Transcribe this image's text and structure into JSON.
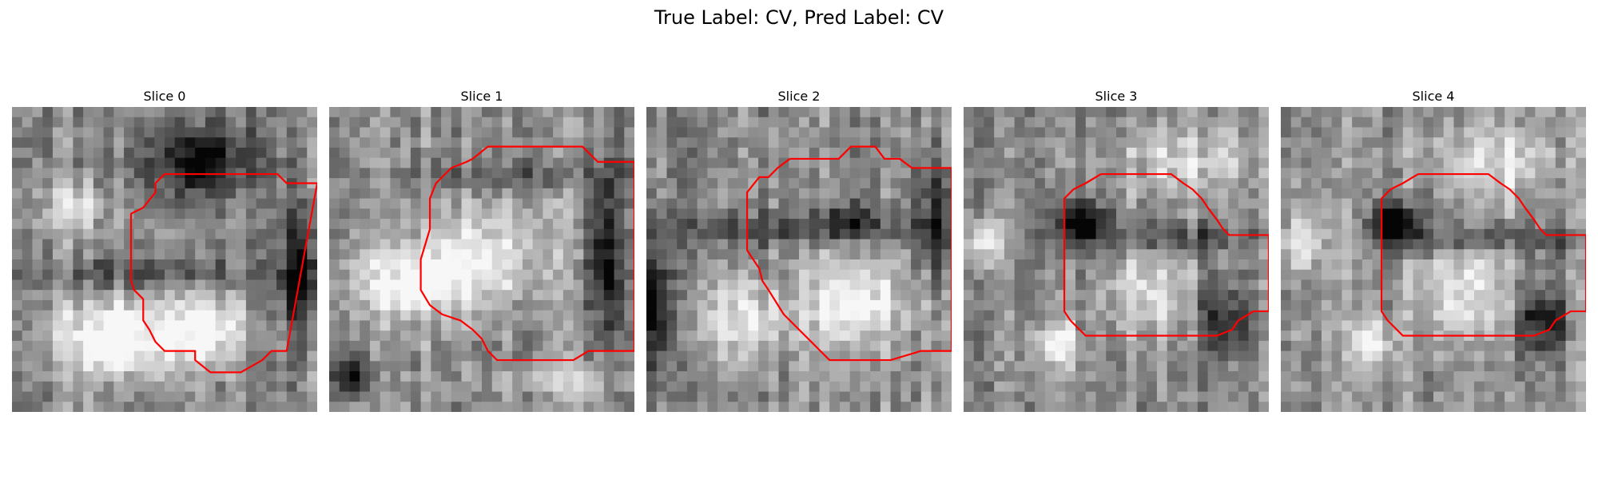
{
  "figure": {
    "title": "True Label: CV, Pred Label: CV"
  },
  "slices": [
    {
      "title": "Slice 0",
      "seed": 11,
      "blobs": [
        [
          0.33,
          0.76,
          0.18,
          0.12,
          0.6
        ],
        [
          0.63,
          0.73,
          0.14,
          0.12,
          0.45
        ],
        [
          0.62,
          0.18,
          0.18,
          0.12,
          -0.55
        ],
        [
          0.2,
          0.33,
          0.12,
          0.08,
          0.3
        ],
        [
          0.95,
          0.55,
          0.06,
          0.2,
          -0.5
        ],
        [
          0.5,
          0.55,
          0.5,
          0.05,
          -0.25
        ]
      ],
      "contour": [
        [
          0.5,
          0.22
        ],
        [
          0.57,
          0.22
        ],
        [
          0.87,
          0.22
        ],
        [
          0.9,
          0.25
        ],
        [
          1.0,
          0.25
        ],
        [
          0.9,
          0.8
        ],
        [
          0.85,
          0.8
        ],
        [
          0.82,
          0.83
        ],
        [
          0.75,
          0.87
        ],
        [
          0.65,
          0.87
        ],
        [
          0.6,
          0.83
        ],
        [
          0.6,
          0.8
        ],
        [
          0.57,
          0.8
        ],
        [
          0.5,
          0.8
        ],
        [
          0.47,
          0.77
        ],
        [
          0.45,
          0.73
        ],
        [
          0.43,
          0.7
        ],
        [
          0.43,
          0.63
        ],
        [
          0.4,
          0.6
        ],
        [
          0.39,
          0.57
        ],
        [
          0.39,
          0.37
        ],
        [
          0.39,
          0.35
        ],
        [
          0.43,
          0.33
        ],
        [
          0.47,
          0.28
        ],
        [
          0.47,
          0.25
        ],
        [
          0.5,
          0.22
        ]
      ],
      "style": {
        "color": "#ff0000",
        "width": 2.2
      }
    },
    {
      "title": "Slice 1",
      "seed": 23,
      "blobs": [
        [
          0.3,
          0.57,
          0.2,
          0.12,
          0.5
        ],
        [
          0.55,
          0.45,
          0.22,
          0.18,
          0.3
        ],
        [
          0.9,
          0.5,
          0.06,
          0.25,
          -0.5
        ],
        [
          0.08,
          0.88,
          0.06,
          0.06,
          -0.5
        ],
        [
          0.6,
          0.23,
          0.4,
          0.05,
          -0.2
        ],
        [
          0.75,
          0.9,
          0.25,
          0.05,
          0.2
        ]
      ],
      "contour": [
        [
          0.57,
          0.13
        ],
        [
          0.83,
          0.13
        ],
        [
          0.88,
          0.18
        ],
        [
          1.0,
          0.18
        ],
        [
          1.0,
          0.8
        ],
        [
          0.85,
          0.8
        ],
        [
          0.8,
          0.83
        ],
        [
          0.55,
          0.83
        ],
        [
          0.52,
          0.8
        ],
        [
          0.5,
          0.76
        ],
        [
          0.47,
          0.73
        ],
        [
          0.43,
          0.7
        ],
        [
          0.37,
          0.68
        ],
        [
          0.33,
          0.65
        ],
        [
          0.3,
          0.6
        ],
        [
          0.3,
          0.5
        ],
        [
          0.33,
          0.4
        ],
        [
          0.33,
          0.3
        ],
        [
          0.35,
          0.25
        ],
        [
          0.37,
          0.23
        ],
        [
          0.4,
          0.2
        ],
        [
          0.45,
          0.18
        ],
        [
          0.47,
          0.17
        ],
        [
          0.52,
          0.13
        ],
        [
          0.57,
          0.13
        ]
      ],
      "style": {
        "color": "#ff0000",
        "width": 2.2
      }
    },
    {
      "title": "Slice 2",
      "seed": 37,
      "blobs": [
        [
          0.3,
          0.7,
          0.16,
          0.14,
          0.35
        ],
        [
          0.68,
          0.63,
          0.16,
          0.16,
          0.45
        ],
        [
          0.5,
          0.4,
          0.45,
          0.05,
          -0.3
        ],
        [
          0.03,
          0.65,
          0.05,
          0.2,
          -0.55
        ],
        [
          0.95,
          0.35,
          0.06,
          0.2,
          -0.45
        ],
        [
          0.65,
          0.37,
          0.1,
          0.06,
          -0.3
        ]
      ],
      "contour": [
        [
          0.47,
          0.17
        ],
        [
          0.63,
          0.17
        ],
        [
          0.67,
          0.13
        ],
        [
          0.75,
          0.13
        ],
        [
          0.78,
          0.17
        ],
        [
          0.83,
          0.17
        ],
        [
          0.87,
          0.2
        ],
        [
          1.0,
          0.2
        ],
        [
          1.0,
          0.8
        ],
        [
          0.9,
          0.8
        ],
        [
          0.8,
          0.83
        ],
        [
          0.62,
          0.83
        ],
        [
          0.6,
          0.83
        ],
        [
          0.57,
          0.8
        ],
        [
          0.5,
          0.73
        ],
        [
          0.45,
          0.68
        ],
        [
          0.4,
          0.6
        ],
        [
          0.38,
          0.57
        ],
        [
          0.37,
          0.53
        ],
        [
          0.35,
          0.5
        ],
        [
          0.33,
          0.47
        ],
        [
          0.33,
          0.28
        ],
        [
          0.37,
          0.23
        ],
        [
          0.4,
          0.23
        ],
        [
          0.43,
          0.2
        ],
        [
          0.47,
          0.17
        ]
      ],
      "style": {
        "color": "#ff0000",
        "width": 2.2
      }
    },
    {
      "title": "Slice 3",
      "seed": 53,
      "blobs": [
        [
          0.6,
          0.6,
          0.15,
          0.15,
          0.35
        ],
        [
          0.38,
          0.38,
          0.08,
          0.07,
          -0.6
        ],
        [
          0.68,
          0.43,
          0.3,
          0.05,
          -0.3
        ],
        [
          0.07,
          0.45,
          0.06,
          0.08,
          0.45
        ],
        [
          0.3,
          0.78,
          0.08,
          0.08,
          0.4
        ],
        [
          0.85,
          0.7,
          0.08,
          0.12,
          -0.45
        ],
        [
          0.72,
          0.18,
          0.2,
          0.12,
          0.3
        ]
      ],
      "contour": [
        [
          0.45,
          0.22
        ],
        [
          0.53,
          0.22
        ],
        [
          0.68,
          0.22
        ],
        [
          0.72,
          0.25
        ],
        [
          0.75,
          0.27
        ],
        [
          0.78,
          0.3
        ],
        [
          0.8,
          0.33
        ],
        [
          0.83,
          0.37
        ],
        [
          0.85,
          0.4
        ],
        [
          0.87,
          0.42
        ],
        [
          1.0,
          0.42
        ],
        [
          1.0,
          0.67
        ],
        [
          0.95,
          0.67
        ],
        [
          0.9,
          0.7
        ],
        [
          0.88,
          0.73
        ],
        [
          0.83,
          0.75
        ],
        [
          0.7,
          0.75
        ],
        [
          0.67,
          0.75
        ],
        [
          0.48,
          0.75
        ],
        [
          0.4,
          0.75
        ],
        [
          0.37,
          0.72
        ],
        [
          0.35,
          0.7
        ],
        [
          0.33,
          0.67
        ],
        [
          0.33,
          0.6
        ],
        [
          0.33,
          0.3
        ],
        [
          0.36,
          0.27
        ],
        [
          0.4,
          0.25
        ],
        [
          0.45,
          0.22
        ]
      ],
      "style": {
        "color": "#ff0000",
        "width": 2.2
      }
    },
    {
      "title": "Slice 4",
      "seed": 71,
      "blobs": [
        [
          0.6,
          0.6,
          0.15,
          0.15,
          0.35
        ],
        [
          0.38,
          0.38,
          0.08,
          0.07,
          -0.6
        ],
        [
          0.68,
          0.43,
          0.3,
          0.05,
          -0.3
        ],
        [
          0.07,
          0.45,
          0.06,
          0.08,
          0.45
        ],
        [
          0.3,
          0.78,
          0.08,
          0.08,
          0.4
        ],
        [
          0.85,
          0.7,
          0.08,
          0.12,
          -0.45
        ],
        [
          0.72,
          0.18,
          0.2,
          0.12,
          0.3
        ]
      ],
      "contour": [
        [
          0.45,
          0.22
        ],
        [
          0.53,
          0.22
        ],
        [
          0.68,
          0.22
        ],
        [
          0.72,
          0.25
        ],
        [
          0.75,
          0.27
        ],
        [
          0.78,
          0.3
        ],
        [
          0.8,
          0.33
        ],
        [
          0.83,
          0.37
        ],
        [
          0.85,
          0.4
        ],
        [
          0.87,
          0.42
        ],
        [
          1.0,
          0.42
        ],
        [
          1.0,
          0.67
        ],
        [
          0.95,
          0.67
        ],
        [
          0.9,
          0.7
        ],
        [
          0.88,
          0.73
        ],
        [
          0.83,
          0.75
        ],
        [
          0.7,
          0.75
        ],
        [
          0.67,
          0.75
        ],
        [
          0.48,
          0.75
        ],
        [
          0.4,
          0.75
        ],
        [
          0.37,
          0.72
        ],
        [
          0.35,
          0.7
        ],
        [
          0.33,
          0.67
        ],
        [
          0.33,
          0.6
        ],
        [
          0.33,
          0.3
        ],
        [
          0.36,
          0.27
        ],
        [
          0.4,
          0.25
        ],
        [
          0.45,
          0.22
        ]
      ],
      "style": {
        "color": "#ff0000",
        "width": 2.2
      }
    }
  ]
}
